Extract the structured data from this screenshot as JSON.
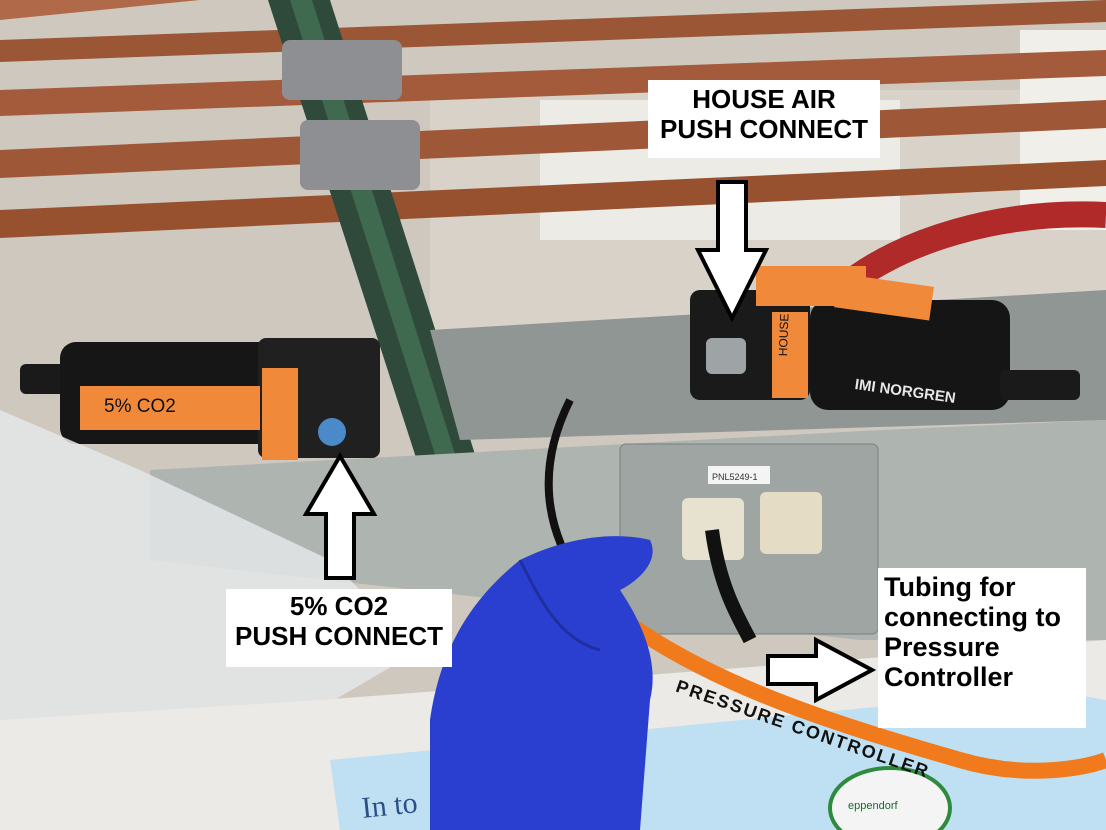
{
  "callouts": {
    "house_air": {
      "line1": "HOUSE AIR",
      "line2": "PUSH CONNECT"
    },
    "co2": {
      "line1": "5% CO2",
      "line2": "PUSH CONNECT"
    },
    "tubing": {
      "line1": "Tubing for",
      "line2": "connecting to",
      "line3": "Pressure",
      "line4": "Controller"
    }
  },
  "photo_text": {
    "panel_label": "PNL5249-1",
    "regulator_brand": "IMI NORGREN",
    "co2_tag": "5% CO2",
    "house_tag": "HOUSE",
    "tubing_marking": "PRESSURE CONTROLLER",
    "box_text": "In to",
    "eppendorf": "eppendorf"
  },
  "colors": {
    "copper": "#a0583a",
    "panel_gray": "#b4bab4",
    "glove_blue": "#2a3fd0",
    "orange_tag": "#f08a3a",
    "tubing_orange": "#f07a1c"
  }
}
